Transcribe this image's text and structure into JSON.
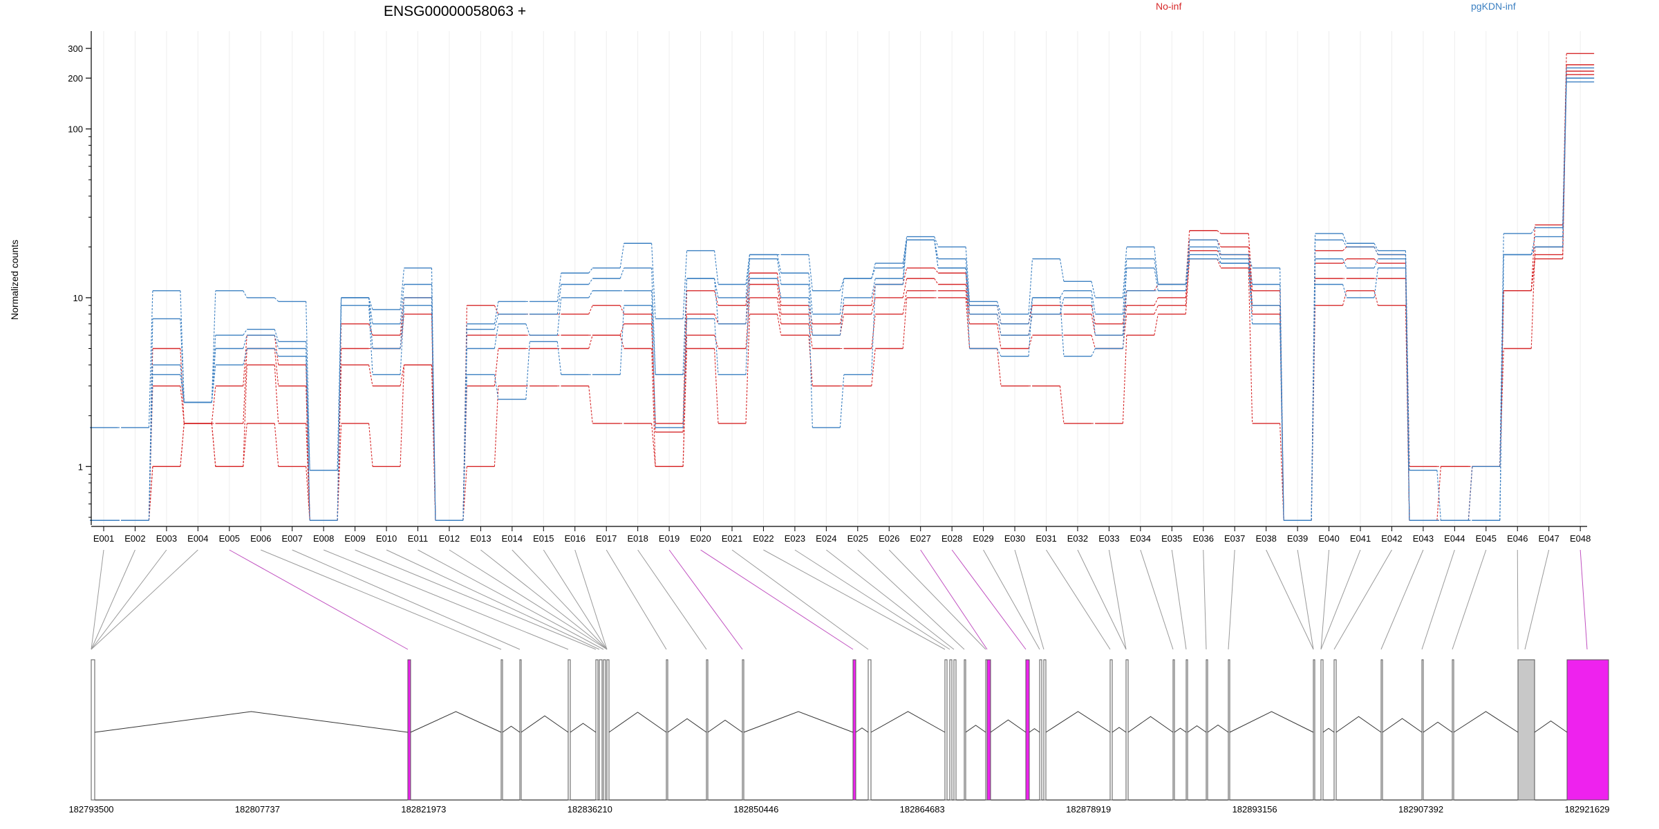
{
  "chart_data": {
    "type": "line",
    "title": "ENSG00000058063 +",
    "ylabel": "Normalized counts",
    "yscale": "log",
    "ylim": [
      0.5,
      360
    ],
    "yticks": [
      1,
      10,
      100,
      200,
      300
    ],
    "yticklabels": [
      "1",
      "10",
      "100",
      "200",
      "300"
    ],
    "grid": true,
    "legend": {
      "placement": "top",
      "entries": [
        {
          "label": "No-inf",
          "color": "#d62728"
        },
        {
          "label": "pgKDN-inf",
          "color": "#3a7fc1"
        }
      ]
    },
    "categories": [
      "E001",
      "E002",
      "E003",
      "E004",
      "E005",
      "E006",
      "E007",
      "E008",
      "E009",
      "E010",
      "E011",
      "E012",
      "E013",
      "E014",
      "E015",
      "E016",
      "E017",
      "E018",
      "E019",
      "E020",
      "E021",
      "E022",
      "E023",
      "E024",
      "E025",
      "E026",
      "E027",
      "E028",
      "E029",
      "E030",
      "E031",
      "E032",
      "E033",
      "E034",
      "E035",
      "E036",
      "E037",
      "E038",
      "E039",
      "E040",
      "E041",
      "E042",
      "E043",
      "E044",
      "E045",
      "E046",
      "E047",
      "E048"
    ],
    "series": [
      {
        "group": "No-inf",
        "color": "#d62728",
        "values": [
          0.48,
          0.48,
          5,
          1.8,
          3,
          6,
          4,
          0.48,
          7,
          6,
          10,
          0.48,
          9,
          8,
          8,
          8,
          9,
          8,
          1.8,
          11,
          9,
          14,
          9,
          7,
          9,
          12,
          15,
          14,
          9,
          7,
          9,
          9,
          7,
          11,
          12,
          25,
          24,
          11,
          0.48,
          19,
          20,
          18,
          1.0,
          1.0,
          1.0,
          11,
          27,
          280
        ]
      },
      {
        "group": "No-inf",
        "color": "#d62728",
        "values": [
          0.48,
          0.48,
          3,
          1.8,
          1.8,
          5,
          3,
          0.48,
          5,
          5,
          8,
          0.48,
          6,
          6,
          6,
          6,
          6,
          7,
          1.6,
          8,
          7,
          12,
          8,
          6,
          8,
          10,
          13,
          12,
          8,
          6,
          8,
          8,
          6,
          9,
          10,
          22,
          20,
          9,
          0.48,
          16,
          17,
          16,
          0.48,
          1.0,
          1.0,
          5,
          20,
          240
        ]
      },
      {
        "group": "No-inf",
        "color": "#d62728",
        "values": [
          0.48,
          0.48,
          1.0,
          1.8,
          1.0,
          4,
          1.8,
          0.48,
          4,
          3,
          4,
          0.48,
          3,
          5,
          5,
          5,
          6,
          5,
          1.0,
          6,
          5,
          10,
          7,
          5,
          5,
          8,
          11,
          11,
          7,
          5,
          6,
          6,
          5,
          8,
          9,
          19,
          18,
          8,
          0.48,
          13,
          13,
          13,
          0.48,
          0.48,
          1.0,
          11,
          18,
          220
        ]
      },
      {
        "group": "No-inf",
        "color": "#d62728",
        "values": [
          0.48,
          0.48,
          1.0,
          1.8,
          1.0,
          1.8,
          1.0,
          0.48,
          1.8,
          1.0,
          4,
          0.48,
          1.0,
          3,
          3,
          3,
          1.8,
          1.8,
          1.0,
          5,
          1.8,
          8,
          6,
          3,
          3,
          5,
          10,
          10,
          5,
          3,
          3,
          1.8,
          1.8,
          6,
          8,
          17,
          15,
          1.8,
          0.48,
          9,
          11,
          9,
          0.48,
          0.48,
          1.0,
          11,
          17,
          210
        ]
      },
      {
        "group": "pgKDN-inf",
        "color": "#3a7fc1",
        "values": [
          1.7,
          1.7,
          11,
          2.4,
          11,
          10,
          9.5,
          0.95,
          10,
          8.5,
          15,
          0.48,
          7,
          9.5,
          9.5,
          14,
          15,
          21,
          7.5,
          19,
          12,
          18,
          18,
          11,
          13,
          16,
          23,
          20,
          9.5,
          8,
          17,
          12.5,
          10,
          20,
          12,
          22,
          18,
          15,
          0.48,
          24,
          21,
          19,
          0.95,
          0.48,
          1.0,
          24,
          26,
          200
        ]
      },
      {
        "group": "pgKDN-inf",
        "color": "#3a7fc1",
        "values": [
          0.48,
          0.48,
          7.5,
          2.4,
          6,
          6.5,
          5.5,
          0.95,
          10,
          7,
          12,
          0.48,
          6.5,
          8,
          8,
          12,
          13,
          15,
          3.5,
          13,
          10,
          18,
          14,
          8,
          13,
          15,
          22,
          17,
          9,
          7,
          10,
          11,
          8,
          17,
          12,
          20,
          17,
          12,
          0.48,
          22,
          20,
          18,
          0.48,
          0.48,
          0.48,
          18,
          23,
          230
        ]
      },
      {
        "group": "pgKDN-inf",
        "color": "#3a7fc1",
        "values": [
          0.48,
          0.48,
          4,
          2.4,
          5,
          6,
          5,
          0.48,
          10,
          5,
          10,
          0.48,
          5,
          7,
          6,
          10,
          11,
          11,
          3.5,
          13,
          7,
          17,
          12,
          6,
          10,
          13,
          22,
          15,
          8,
          6,
          8,
          10,
          6,
          15,
          11,
          18,
          16,
          9,
          0.48,
          17,
          15,
          17,
          0.48,
          0.48,
          0.48,
          18,
          20,
          200
        ]
      },
      {
        "group": "pgKDN-inf",
        "color": "#3a7fc1",
        "values": [
          0.48,
          0.48,
          3.5,
          2.4,
          4,
          5,
          4.5,
          0.48,
          9,
          3.5,
          9,
          0.48,
          3.5,
          2.5,
          5.5,
          3.5,
          3.5,
          9,
          1.7,
          7.5,
          3.5,
          13,
          10,
          1.7,
          3.5,
          12,
          22,
          15,
          5,
          4.5,
          10,
          4.5,
          5,
          11,
          11,
          17,
          16,
          7,
          0.48,
          12,
          10,
          15,
          0.48,
          0.48,
          0.48,
          18,
          20,
          190
        ]
      }
    ],
    "gene_model": {
      "coordinate_labels": [
        "182793500",
        "182807737",
        "182821973",
        "182836210",
        "182850446",
        "182864683",
        "182878919",
        "182893156",
        "182907392",
        "182921629"
      ]
    }
  }
}
